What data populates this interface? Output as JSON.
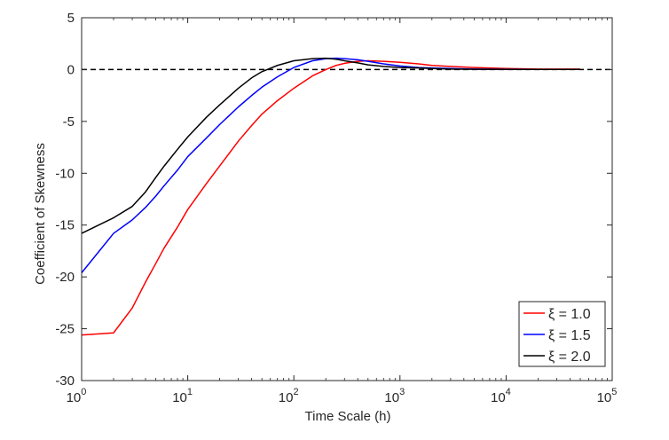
{
  "chart_data": {
    "type": "line",
    "title": "",
    "xlabel": "Time Scale (h)",
    "ylabel": "Coefficient of Skewness",
    "xscale": "log",
    "xlim": [
      1,
      100000
    ],
    "ylim": [
      -30,
      5
    ],
    "grid": false,
    "legend_position": "bottom-right",
    "x_ticks": [
      {
        "value": 1,
        "base": "10",
        "exp": "0"
      },
      {
        "value": 10,
        "base": "10",
        "exp": "1"
      },
      {
        "value": 100,
        "base": "10",
        "exp": "2"
      },
      {
        "value": 1000,
        "base": "10",
        "exp": "3"
      },
      {
        "value": 10000,
        "base": "10",
        "exp": "4"
      },
      {
        "value": 100000,
        "base": "10",
        "exp": "5"
      }
    ],
    "y_ticks": [
      {
        "value": 5,
        "label": "5"
      },
      {
        "value": 0,
        "label": "0"
      },
      {
        "value": -5,
        "label": "-5"
      },
      {
        "value": -10,
        "label": "-10"
      },
      {
        "value": -15,
        "label": "-15"
      },
      {
        "value": -20,
        "label": "-20"
      },
      {
        "value": -25,
        "label": "-25"
      },
      {
        "value": -30,
        "label": "-30"
      }
    ],
    "reference_line": {
      "y": 0,
      "style": "dashed",
      "color": "#000000"
    },
    "series": [
      {
        "name": "ξ = 1.0",
        "color": "#ff0000",
        "points": [
          [
            1,
            -25.6
          ],
          [
            2,
            -25.4
          ],
          [
            3,
            -23.0
          ],
          [
            4,
            -20.5
          ],
          [
            5,
            -18.7
          ],
          [
            6,
            -17.2
          ],
          [
            8,
            -15.2
          ],
          [
            10,
            -13.5
          ],
          [
            15,
            -11.0
          ],
          [
            20,
            -9.3
          ],
          [
            30,
            -6.9
          ],
          [
            40,
            -5.4
          ],
          [
            50,
            -4.3
          ],
          [
            70,
            -3.0
          ],
          [
            100,
            -1.8
          ],
          [
            150,
            -0.6
          ],
          [
            200,
            0.0
          ],
          [
            250,
            0.4
          ],
          [
            300,
            0.6
          ],
          [
            400,
            0.8
          ],
          [
            500,
            0.85
          ],
          [
            700,
            0.8
          ],
          [
            1000,
            0.7
          ],
          [
            1500,
            0.55
          ],
          [
            2000,
            0.4
          ],
          [
            3000,
            0.3
          ],
          [
            5000,
            0.2
          ],
          [
            7000,
            0.15
          ],
          [
            10000,
            0.1
          ],
          [
            20000,
            0.05
          ],
          [
            50000,
            0.05
          ]
        ]
      },
      {
        "name": "ξ = 1.5",
        "color": "#0000ff",
        "points": [
          [
            1,
            -19.6
          ],
          [
            2,
            -15.8
          ],
          [
            3,
            -14.5
          ],
          [
            4,
            -13.3
          ],
          [
            5,
            -12.2
          ],
          [
            6,
            -11.2
          ],
          [
            8,
            -9.7
          ],
          [
            10,
            -8.4
          ],
          [
            15,
            -6.6
          ],
          [
            20,
            -5.3
          ],
          [
            30,
            -3.6
          ],
          [
            40,
            -2.5
          ],
          [
            50,
            -1.7
          ],
          [
            70,
            -0.7
          ],
          [
            100,
            0.2
          ],
          [
            150,
            0.85
          ],
          [
            200,
            1.05
          ],
          [
            250,
            1.1
          ],
          [
            300,
            1.05
          ],
          [
            400,
            0.95
          ],
          [
            500,
            0.8
          ],
          [
            700,
            0.55
          ],
          [
            1000,
            0.35
          ],
          [
            1500,
            0.2
          ],
          [
            2000,
            0.15
          ],
          [
            3000,
            0.1
          ],
          [
            5000,
            0.05
          ],
          [
            10000,
            0.03
          ],
          [
            20000,
            0.02
          ],
          [
            50000,
            0.02
          ]
        ]
      },
      {
        "name": "ξ = 2.0",
        "color": "#000000",
        "points": [
          [
            1,
            -15.8
          ],
          [
            2,
            -14.3
          ],
          [
            3,
            -13.2
          ],
          [
            4,
            -11.8
          ],
          [
            5,
            -10.4
          ],
          [
            6,
            -9.3
          ],
          [
            8,
            -7.7
          ],
          [
            10,
            -6.5
          ],
          [
            15,
            -4.6
          ],
          [
            20,
            -3.4
          ],
          [
            30,
            -1.8
          ],
          [
            40,
            -0.8
          ],
          [
            50,
            -0.2
          ],
          [
            70,
            0.4
          ],
          [
            100,
            0.85
          ],
          [
            150,
            1.05
          ],
          [
            200,
            1.1
          ],
          [
            250,
            1.0
          ],
          [
            300,
            0.85
          ],
          [
            400,
            0.65
          ],
          [
            500,
            0.45
          ],
          [
            700,
            0.3
          ],
          [
            1000,
            0.2
          ],
          [
            1500,
            0.15
          ],
          [
            2000,
            0.1
          ],
          [
            3000,
            0.05
          ],
          [
            5000,
            0.03
          ],
          [
            10000,
            0.02
          ],
          [
            20000,
            0.01
          ],
          [
            50000,
            0.01
          ]
        ]
      }
    ]
  }
}
